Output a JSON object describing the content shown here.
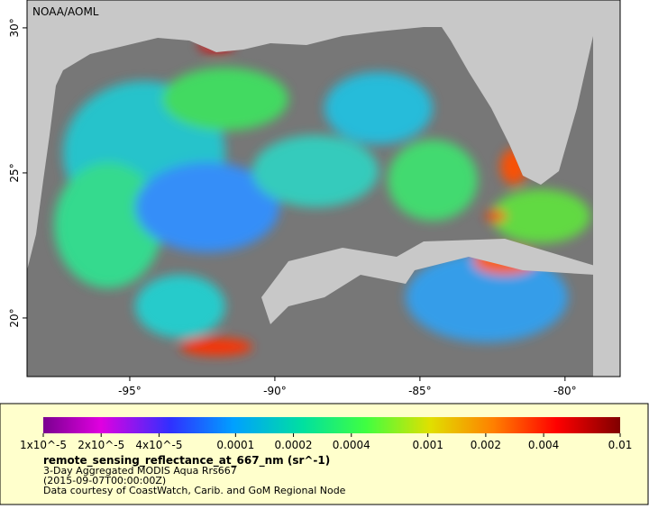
{
  "map": {
    "credit": "NOAA/AOML",
    "xlim": [
      -98.54,
      -78.1
    ],
    "ylim": [
      17.98,
      30.96
    ],
    "lon_ticks": [
      {
        "value": -95,
        "label": "-95°"
      },
      {
        "value": -90,
        "label": "-90°"
      },
      {
        "value": -85,
        "label": "-85°"
      },
      {
        "value": -80,
        "label": "-80°"
      }
    ],
    "lat_ticks": [
      {
        "value": 20,
        "label": "20°"
      },
      {
        "value": 25,
        "label": "25°"
      },
      {
        "value": 30,
        "label": "30°"
      }
    ]
  },
  "legend": {
    "log_scale": true,
    "range": [
      1e-05,
      0.01
    ],
    "ticks": [
      {
        "value": 1e-05,
        "label": "1x10^-5"
      },
      {
        "value": 2e-05,
        "label": "2x10^-5"
      },
      {
        "value": 4e-05,
        "label": "4x10^-5"
      },
      0.0001,
      0.0002,
      0.0004,
      0.001,
      0.002,
      0.004,
      0.01
    ],
    "variable": "remote_sensing_reflectance_at_667_nm (sr^-1)",
    "product": "3-Day Aggregated MODIS Aqua Rrs667",
    "time": "(2015-09-07T00:00:00Z)",
    "source": "Data courtesy of CoastWatch, Carib. and GoM Regional Node"
  }
}
